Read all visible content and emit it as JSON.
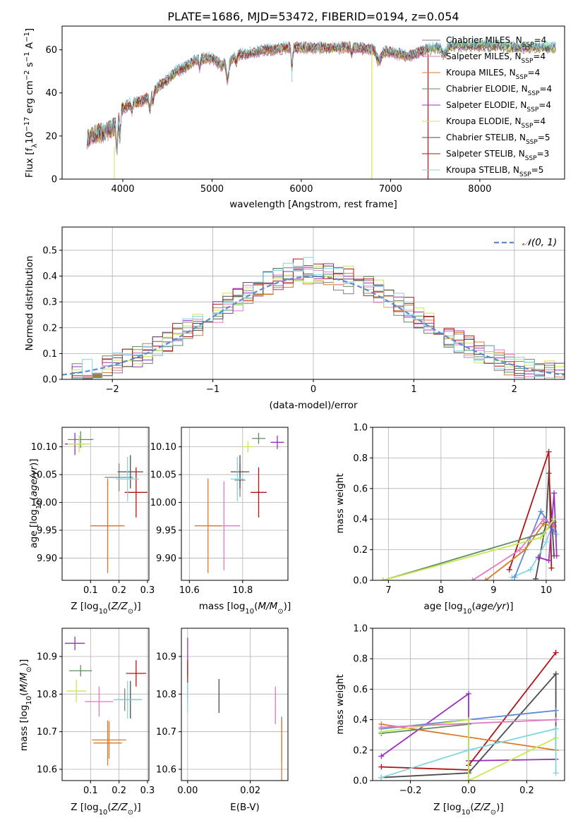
{
  "title": "PLATE=1686, MJD=53472, FIBERID=0194, z=0.054",
  "models": [
    {
      "name": "Chabrier MILES, N",
      "ssp": "=4",
      "color": "#7f7f7f"
    },
    {
      "name": "Salpeter MILES, N",
      "ssp": "=4",
      "color": "#e377c2"
    },
    {
      "name": "Kroupa MILES, N",
      "ssp": "=4",
      "color": "#d87a2a"
    },
    {
      "name": "Chabrier ELODIE, N",
      "ssp": "=4",
      "color": "#5f8c5f"
    },
    {
      "name": "Salpeter ELODIE, N",
      "ssp": "=4",
      "color": "#9a2fbf"
    },
    {
      "name": "Kroupa ELODIE, N",
      "ssp": "=4",
      "color": "#c7e84f"
    },
    {
      "name": "Chabrier STELIB, N",
      "ssp": "=5",
      "color": "#4d4d4d"
    },
    {
      "name": "Salpeter STELIB, N",
      "ssp": "=3",
      "color": "#b01515"
    },
    {
      "name": "Kroupa STELIB, N",
      "ssp": "=5",
      "color": "#7fd6de"
    }
  ],
  "chart_data": [
    {
      "type": "line",
      "panel": "spectrum",
      "xlabel": "wavelength [Angstrom, rest frame]",
      "ylabel": "Flux [f_λ10^-17 erg cm^-2 s^-1 A^-1]",
      "xlim": [
        3320,
        8950
      ],
      "ylim": [
        0,
        71
      ],
      "xticks": [
        4000,
        5000,
        6000,
        7000,
        8000
      ],
      "yticks": [
        0,
        20,
        40,
        60
      ],
      "continuum_x": [
        3600,
        3700,
        3800,
        3900,
        4000,
        4100,
        4200,
        4300,
        4400,
        4500,
        4600,
        4700,
        4800,
        4900,
        5000,
        5100,
        5200,
        5300,
        5400,
        5500,
        5600,
        5700,
        5800,
        5900,
        6000,
        6200,
        6400,
        6600,
        6800,
        7000,
        7200,
        7400,
        7600,
        7800,
        8000,
        8200,
        8400,
        8600,
        8800
      ],
      "continuum_y": [
        19,
        21,
        22,
        24,
        33,
        35,
        36,
        38,
        43,
        46,
        50,
        52,
        55,
        56,
        56,
        53,
        55,
        58,
        58,
        59,
        60,
        60,
        61,
        61,
        61,
        61,
        61,
        61,
        60,
        59,
        57,
        60,
        62,
        62,
        62,
        62,
        61,
        61,
        61
      ],
      "legend_position": "right"
    },
    {
      "type": "histogram",
      "panel": "residuals",
      "xlabel": "(data-model)/error",
      "ylabel": "Normed distribution",
      "xlim": [
        -2.5,
        2.5
      ],
      "ylim": [
        0,
        0.59
      ],
      "xticks": [
        -2,
        -1,
        0,
        1,
        2
      ],
      "yticks": [
        0.0,
        0.1,
        0.2,
        0.3,
        0.4,
        0.5
      ],
      "bin_width": 0.1,
      "reference_curve": "𝒩(0, 1)",
      "reference_color": "#5b8ad6",
      "legend_position": "top-right"
    },
    {
      "type": "scatter",
      "panel": "age-vs-Z",
      "xlabel": "Z [log10(Z/Z⊙)]",
      "ylabel": "age  [log10(age/yr)]",
      "xlim": [
        0.0,
        0.305
      ],
      "ylim": [
        9.86,
        10.135
      ],
      "xticks": [
        0.1,
        0.2,
        0.3
      ],
      "yticks": [
        9.9,
        9.95,
        10.0,
        10.05,
        10.1
      ],
      "points": [
        {
          "x": 0.2,
          "y": 10.045,
          "xerr": 0.05,
          "yerr": 0.025,
          "model": 0
        },
        {
          "x": 0.16,
          "y": 9.958,
          "xerr": 0.05,
          "yerr": 0.08,
          "model": 1
        },
        {
          "x": 0.16,
          "y": 9.958,
          "xerr": 0.06,
          "yerr": 0.085,
          "model": 2
        },
        {
          "x": 0.065,
          "y": 10.113,
          "xerr": 0.045,
          "yerr": 0.015,
          "model": 3
        },
        {
          "x": 0.045,
          "y": 10.105,
          "xerr": 0.035,
          "yerr": 0.02,
          "model": 4
        },
        {
          "x": 0.06,
          "y": 10.105,
          "xerr": 0.04,
          "yerr": 0.015,
          "model": 5
        },
        {
          "x": 0.24,
          "y": 10.055,
          "xerr": 0.045,
          "yerr": 0.03,
          "model": 6
        },
        {
          "x": 0.26,
          "y": 10.018,
          "xerr": 0.04,
          "yerr": 0.045,
          "model": 7
        },
        {
          "x": 0.23,
          "y": 10.042,
          "xerr": 0.04,
          "yerr": 0.04,
          "model": 8
        }
      ]
    },
    {
      "type": "scatter",
      "panel": "age-vs-mass",
      "xlabel": "mass [log10(M/M⊙)]",
      "ylabel": "",
      "xlim": [
        10.57,
        10.97
      ],
      "ylim": [
        9.86,
        10.135
      ],
      "xticks": [
        10.6,
        10.8
      ],
      "yticks": [
        9.9,
        9.95,
        10.0,
        10.05,
        10.1
      ],
      "points": [
        {
          "x": 10.79,
          "y": 10.04,
          "xerr": 0.02,
          "yerr": 0.03,
          "model": 0
        },
        {
          "x": 10.73,
          "y": 9.958,
          "xerr": 0.06,
          "yerr": 0.08,
          "model": 1
        },
        {
          "x": 10.67,
          "y": 9.958,
          "xerr": 0.05,
          "yerr": 0.085,
          "model": 2
        },
        {
          "x": 10.86,
          "y": 10.115,
          "xerr": 0.025,
          "yerr": 0.01,
          "model": 3
        },
        {
          "x": 10.93,
          "y": 10.108,
          "xerr": 0.025,
          "yerr": 0.012,
          "model": 4
        },
        {
          "x": 10.82,
          "y": 10.1,
          "xerr": 0.02,
          "yerr": 0.01,
          "model": 5
        },
        {
          "x": 10.79,
          "y": 10.055,
          "xerr": 0.035,
          "yerr": 0.03,
          "model": 6
        },
        {
          "x": 10.86,
          "y": 10.018,
          "xerr": 0.03,
          "yerr": 0.045,
          "model": 7
        },
        {
          "x": 10.78,
          "y": 10.042,
          "xerr": 0.025,
          "yerr": 0.04,
          "model": 8
        }
      ]
    },
    {
      "type": "line",
      "panel": "mass-weight-vs-age",
      "xlabel": "age  [log10(age/yr)]",
      "ylabel": "mass weight",
      "xlim": [
        6.7,
        10.35
      ],
      "ylim": [
        0,
        1.0
      ],
      "xticks": [
        7,
        8,
        9,
        10
      ],
      "yticks": [
        0.0,
        0.2,
        0.4,
        0.6,
        0.8,
        1.0
      ],
      "series": [
        {
          "model": 6,
          "x": [
            9.8,
            10.0,
            10.05,
            10.15
          ],
          "y": [
            0.01,
            0.38,
            0.7,
            0.16
          ]
        },
        {
          "model": 7,
          "x": [
            9.3,
            10.05,
            10.1
          ],
          "y": [
            0.07,
            0.84,
            0.08
          ]
        },
        {
          "model": 8,
          "x": [
            9.35,
            9.7,
            10.0,
            10.15,
            10.2
          ],
          "y": [
            0.02,
            0.07,
            0.25,
            0.4,
            0.3
          ]
        },
        {
          "model": 0,
          "x": [
            9.4,
            9.9,
            10.1,
            10.15
          ],
          "y": [
            0.02,
            0.45,
            0.35,
            0.32
          ]
        },
        {
          "model": 1,
          "x": [
            8.6,
            9.5,
            9.95,
            10.15
          ],
          "y": [
            0.0,
            0.2,
            0.4,
            0.36
          ]
        },
        {
          "model": 2,
          "x": [
            8.85,
            9.6,
            9.95,
            10.15
          ],
          "y": [
            0.0,
            0.2,
            0.37,
            0.35
          ]
        },
        {
          "model": 3,
          "x": [
            6.9,
            9.95,
            10.15
          ],
          "y": [
            0.0,
            0.31,
            0.38
          ]
        },
        {
          "model": 4,
          "x": [
            9.85,
            10.05,
            10.15,
            10.2
          ],
          "y": [
            0.15,
            0.13,
            0.57,
            0.16
          ]
        },
        {
          "model": 5,
          "x": [
            6.9,
            9.9,
            10.15
          ],
          "y": [
            0.0,
            0.28,
            0.4
          ]
        }
      ]
    },
    {
      "type": "scatter",
      "panel": "mass-vs-Z",
      "xlabel": "Z [log10(Z/Z⊙)]",
      "ylabel": "mass [log10(M/M⊙)]",
      "xlim": [
        0.0,
        0.305
      ],
      "ylim": [
        10.57,
        10.975
      ],
      "xticks": [
        0.1,
        0.2,
        0.3
      ],
      "yticks": [
        10.6,
        10.7,
        10.8,
        10.9
      ],
      "points": [
        {
          "x": 0.22,
          "y": 10.785,
          "xerr": 0.03,
          "yerr": 0.03,
          "model": 0
        },
        {
          "x": 0.13,
          "y": 10.78,
          "xerr": 0.05,
          "yerr": 0.04,
          "model": 1
        },
        {
          "x": 0.16,
          "y": 10.67,
          "xerr": 0.05,
          "yerr": 0.06,
          "model": 2
        },
        {
          "x": 0.065,
          "y": 10.862,
          "xerr": 0.04,
          "yerr": 0.015,
          "model": 3
        },
        {
          "x": 0.045,
          "y": 10.935,
          "xerr": 0.035,
          "yerr": 0.018,
          "model": 4
        },
        {
          "x": 0.05,
          "y": 10.808,
          "xerr": 0.035,
          "yerr": 0.03,
          "model": 5
        },
        {
          "x": 0.24,
          "y": 10.785,
          "xerr": 0.04,
          "yerr": 0.05,
          "model": 6
        },
        {
          "x": 0.26,
          "y": 10.855,
          "xerr": 0.035,
          "yerr": 0.035,
          "model": 7
        },
        {
          "x": 0.23,
          "y": 10.785,
          "xerr": 0.05,
          "yerr": 0.05,
          "model": 8
        },
        {
          "x": 0.165,
          "y": 10.678,
          "xerr": 0.06,
          "yerr": 0.05,
          "model": 2
        }
      ]
    },
    {
      "type": "scatter",
      "panel": "mass-vs-ebv",
      "xlabel": "E(B-V)",
      "ylabel": "",
      "xlim": [
        -0.002,
        0.032
      ],
      "ylim": [
        10.57,
        10.975
      ],
      "xticks": [
        0.0,
        0.02
      ],
      "yticks": [
        10.6,
        10.7,
        10.8,
        10.9
      ],
      "points": [
        {
          "x": 0.0,
          "y": 10.9,
          "xerr": 0,
          "yerr": 0.05,
          "model": 4
        },
        {
          "x": 0.0,
          "y": 10.84,
          "xerr": 0,
          "yerr": 0.05,
          "model": 7
        },
        {
          "x": 0.0,
          "y": 10.8,
          "xerr": 0,
          "yerr": 0.03,
          "model": 5
        },
        {
          "x": 0.0,
          "y": 10.79,
          "xerr": 0,
          "yerr": 0.04,
          "model": 8
        },
        {
          "x": 0.01,
          "y": 10.795,
          "xerr": 0,
          "yerr": 0.045,
          "model": 6
        },
        {
          "x": 0.028,
          "y": 10.77,
          "xerr": 0,
          "yerr": 0.05,
          "model": 1
        },
        {
          "x": 0.03,
          "y": 10.68,
          "xerr": 0,
          "yerr": 0.06,
          "model": 0
        },
        {
          "x": 0.03,
          "y": 10.65,
          "xerr": 0,
          "yerr": 0.08,
          "model": 2
        }
      ]
    },
    {
      "type": "line",
      "panel": "mass-weight-vs-Z",
      "xlabel": "Z [log10(Z/Z⊙)]",
      "ylabel": "mass weight",
      "xlim": [
        -0.33,
        0.33
      ],
      "ylim": [
        0,
        1.0
      ],
      "xticks": [
        -0.2,
        0.0,
        0.2
      ],
      "yticks": [
        0.0,
        0.2,
        0.4,
        0.6,
        0.8,
        1.0
      ],
      "series": [
        {
          "model": 4,
          "x": [
            -0.3,
            0.0,
            0.0,
            0.3
          ],
          "y": [
            0.16,
            0.57,
            0.13,
            0.14
          ]
        },
        {
          "model": 7,
          "x": [
            -0.3,
            0.0,
            0.0,
            0.3
          ],
          "y": [
            0.09,
            0.07,
            0.1,
            0.84
          ]
        },
        {
          "model": 6,
          "x": [
            -0.3,
            0.0,
            0.3,
            0.3
          ],
          "y": [
            0.02,
            0.05,
            0.7,
            0.2
          ]
        },
        {
          "model": 0,
          "x": [
            -0.3,
            0.3
          ],
          "y": [
            0.34,
            0.46
          ]
        },
        {
          "model": 2,
          "x": [
            -0.3,
            0.3
          ],
          "y": [
            0.37,
            0.2
          ]
        },
        {
          "model": 3,
          "x": [
            -0.3,
            0.0,
            0.0
          ],
          "y": [
            0.31,
            0.37,
            0.0
          ]
        },
        {
          "model": 5,
          "x": [
            -0.3,
            0.0,
            0.0,
            0.3
          ],
          "y": [
            0.32,
            0.4,
            0.0,
            0.28
          ]
        },
        {
          "model": 8,
          "x": [
            -0.3,
            0.0,
            0.3,
            0.3
          ],
          "y": [
            0.02,
            0.2,
            0.34,
            0.05
          ]
        },
        {
          "model": 1,
          "x": [
            -0.3,
            0.3
          ],
          "y": [
            0.35,
            0.4
          ]
        }
      ]
    }
  ]
}
